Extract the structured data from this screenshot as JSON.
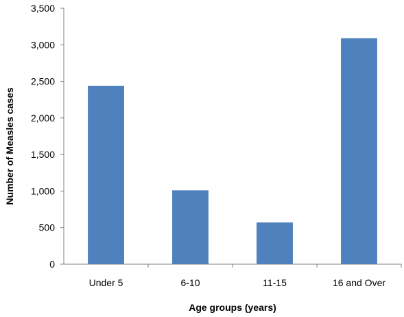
{
  "chart_data": {
    "type": "bar",
    "title": "",
    "xlabel": "Age groups (years)",
    "ylabel": "Number of Measles cases",
    "categories": [
      "Under 5",
      "6-10",
      "11-15",
      "16 and Over"
    ],
    "values": [
      2440,
      1010,
      570,
      3090
    ],
    "ylim": [
      0,
      3500
    ],
    "yticks": [
      0,
      500,
      1000,
      1500,
      2000,
      2500,
      3000,
      3500
    ],
    "ytick_labels": [
      "0",
      "500",
      "1,000",
      "1,500",
      "2,000",
      "2,500",
      "3,000",
      "3,500"
    ],
    "grid": false,
    "legend": "none",
    "bar_color": "#4f81bd"
  }
}
